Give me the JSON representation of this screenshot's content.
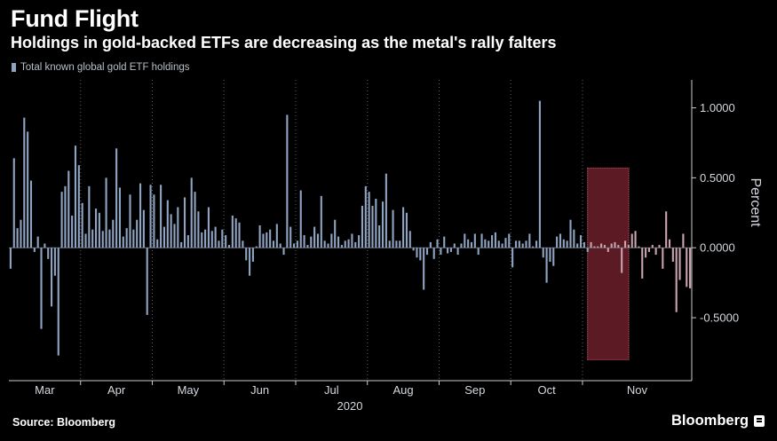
{
  "header": {
    "title": "Fund Flight",
    "subtitle": "Holdings in gold-backed ETFs are decreasing as the metal's rally falters"
  },
  "footer": {
    "source": "Source: Bloomberg",
    "brand": "Bloomberg"
  },
  "colors": {
    "background": "#000000",
    "bar": "#8fa3c2",
    "highlight_fill": "#6b1f2a",
    "highlight_border": "#e0566b"
  },
  "chart_data": {
    "type": "bar",
    "title": "Fund Flight",
    "subtitle": "Holdings in gold-backed ETFs are decreasing as the metal's rally falters",
    "ylabel": "Percent",
    "xlabel": "2020",
    "legend": [
      "Total known global gold ETF holdings"
    ],
    "legend_position": "top-left",
    "y_axis_side": "right",
    "ylim": [
      -0.95,
      1.2
    ],
    "yticks": [
      1.0,
      0.5,
      0.0,
      -0.5
    ],
    "ytick_labels": [
      "1.0000",
      "0.5000",
      "0.0000",
      "-0.5000"
    ],
    "grid": "vertical dotted at month boundaries",
    "months": [
      "Mar",
      "Apr",
      "May",
      "Jun",
      "Jul",
      "Aug",
      "Sep",
      "Oct",
      "Nov"
    ],
    "month_start_index": [
      0,
      21,
      42,
      63,
      84,
      105,
      126,
      147,
      168
    ],
    "highlight": {
      "start_index": 170,
      "end_index": 180,
      "y_range": [
        -0.8,
        0.57
      ]
    },
    "series": [
      {
        "name": "Total known global gold ETF holdings",
        "values": [
          -0.15,
          0.64,
          0.14,
          0.2,
          0.93,
          0.83,
          0.48,
          -0.03,
          0.08,
          -0.58,
          0.03,
          -0.08,
          -0.42,
          -0.2,
          -0.77,
          0.4,
          0.44,
          0.55,
          0.23,
          0.73,
          0.59,
          0.32,
          0.1,
          0.44,
          0.13,
          0.28,
          0.25,
          0.12,
          0.5,
          0.13,
          0.2,
          0.71,
          0.43,
          0.08,
          0.14,
          0.38,
          0.13,
          0.2,
          0.46,
          0.27,
          -0.48,
          0.45,
          0.38,
          0.06,
          0.45,
          0.15,
          0.34,
          0.24,
          0.17,
          0.29,
          0.04,
          0.36,
          0.09,
          0.5,
          0.4,
          0.26,
          0.11,
          0.13,
          0.29,
          0.12,
          0.15,
          0.05,
          0.13,
          0.09,
          0.02,
          0.23,
          0.21,
          0.18,
          0.05,
          -0.09,
          -0.2,
          -0.1,
          0.01,
          0.16,
          0.1,
          0.11,
          0.13,
          0.05,
          0.17,
          0.03,
          -0.05,
          0.95,
          0.15,
          0.03,
          0.05,
          0.41,
          0.09,
          0.02,
          0.08,
          0.15,
          0.1,
          0.37,
          0.05,
          0.03,
          0.1,
          0.2,
          0.08,
          0.02,
          0.05,
          0.06,
          0.1,
          0.04,
          0.09,
          0.3,
          0.44,
          0.4,
          0.3,
          0.35,
          0.16,
          0.33,
          0.53,
          0.05,
          0.27,
          0.05,
          0.05,
          0.29,
          0.25,
          0.12,
          -0.02,
          -0.07,
          -0.09,
          -0.3,
          -0.05,
          0.04,
          -0.08,
          0.06,
          -0.05,
          0.08,
          -0.04,
          -0.03,
          0.03,
          -0.05,
          0.03,
          0.1,
          0.06,
          0.04,
          0.1,
          -0.05,
          0.1,
          0.06,
          0.05,
          0.09,
          0.11,
          0.05,
          0.03,
          0.07,
          0.1,
          -0.14,
          0.05,
          0.05,
          0.03,
          0.05,
          0.1,
          0.01,
          0.05,
          1.05,
          -0.07,
          -0.25,
          -0.1,
          -0.13,
          0.08,
          0.1,
          0.06,
          0.05,
          0.2,
          0.13,
          0.03,
          0.09,
          0.04,
          -0.03,
          0.04,
          0.01,
          0.01,
          0.03,
          0.02,
          -0.03,
          0.03,
          0.04,
          0.02,
          -0.18,
          0.05,
          0.02,
          0.1,
          0.12,
          0.01,
          -0.22,
          -0.07,
          -0.03,
          0.02,
          -0.05,
          0.02,
          -0.15,
          0.26,
          0.06,
          -0.1,
          -0.46,
          -0.23,
          0.1,
          -0.28,
          -0.29
        ]
      }
    ]
  }
}
